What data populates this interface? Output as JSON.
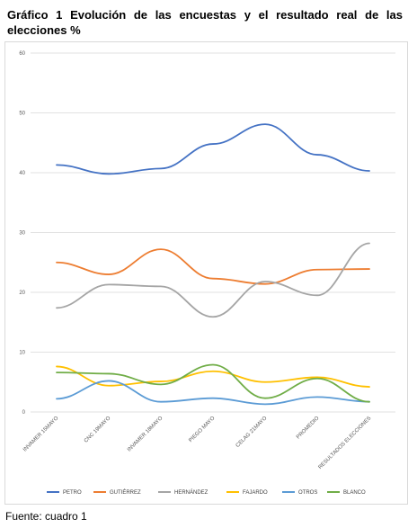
{
  "header": {
    "title": "Gráfico 1 Evolución de las encuestas y el resultado real de las elecciones %"
  },
  "footer": {
    "source": "Fuente: cuadro 1"
  },
  "chart_data": {
    "type": "line",
    "title": "",
    "xlabel": "",
    "ylabel": "",
    "ylim": [
      0,
      60
    ],
    "yticks": [
      0,
      10,
      20,
      30,
      40,
      50,
      60
    ],
    "grid": true,
    "legend_position": "bottom",
    "categories": [
      "INVAMER 15MAYO",
      "CNC 19MAYO",
      "INVAMER 18MAYO",
      "PIEGO MAYO",
      "CELAG 21MAYO",
      "PROMEDIO",
      "RESULTADOS ELECCIONES"
    ],
    "series": [
      {
        "name": "PETRO",
        "color": "#4472c4",
        "values": [
          41.3,
          39.8,
          40.7,
          44.8,
          48.1,
          43.0,
          40.3
        ]
      },
      {
        "name": "GUTIÉRREZ",
        "color": "#ed7d31",
        "values": [
          25.0,
          23.0,
          27.2,
          22.3,
          21.4,
          23.8,
          23.9
        ]
      },
      {
        "name": "HERNÁNDEZ",
        "color": "#a5a5a5",
        "values": [
          17.4,
          21.3,
          21.0,
          15.9,
          21.8,
          19.5,
          28.2
        ]
      },
      {
        "name": "FAJARDO",
        "color": "#ffc000",
        "values": [
          7.6,
          4.4,
          5.1,
          6.8,
          5.0,
          5.8,
          4.2
        ]
      },
      {
        "name": "OTROS",
        "color": "#5b9bd5",
        "values": [
          2.2,
          5.2,
          1.7,
          2.3,
          1.3,
          2.5,
          1.7
        ]
      },
      {
        "name": "BLANCO",
        "color": "#70ad47",
        "values": [
          6.6,
          6.4,
          4.6,
          7.9,
          2.3,
          5.6,
          1.7
        ]
      }
    ]
  }
}
